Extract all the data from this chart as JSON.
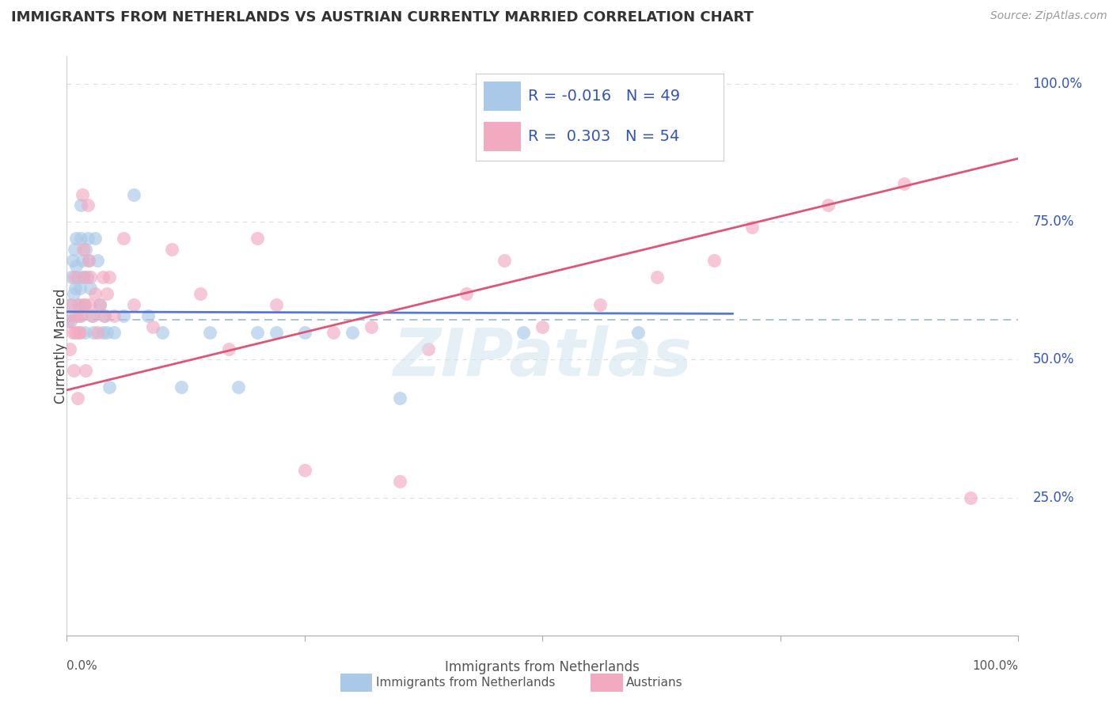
{
  "title": "IMMIGRANTS FROM NETHERLANDS VS AUSTRIAN CURRENTLY MARRIED CORRELATION CHART",
  "source": "Source: ZipAtlas.com",
  "ylabel": "Currently Married",
  "right_ytick_labels": [
    "100.0%",
    "75.0%",
    "50.0%",
    "25.0%"
  ],
  "right_ytick_values": [
    1.0,
    0.75,
    0.5,
    0.25
  ],
  "legend_blue_R": "R = -0.016",
  "legend_blue_N": "N = 49",
  "legend_pink_R": "R =  0.303",
  "legend_pink_N": "N = 54",
  "blue_color": "#aac9e8",
  "pink_color": "#f2aac0",
  "trend_blue_color": "#5577cc",
  "trend_pink_color": "#dd5577",
  "legend_text_color": "#3355bb",
  "dashed_line_color": "#99bbcc",
  "watermark_text": "ZIPatlas",
  "background_color": "#ffffff",
  "grid_color": "#dddddd",
  "blue_scatter_x": [
    0.001,
    0.003,
    0.004,
    0.005,
    0.006,
    0.007,
    0.008,
    0.009,
    0.01,
    0.01,
    0.011,
    0.012,
    0.013,
    0.014,
    0.015,
    0.015,
    0.016,
    0.017,
    0.018,
    0.019,
    0.02,
    0.021,
    0.022,
    0.023,
    0.025,
    0.026,
    0.028,
    0.03,
    0.032,
    0.035,
    0.038,
    0.04,
    0.042,
    0.045,
    0.05,
    0.06,
    0.07,
    0.085,
    0.1,
    0.12,
    0.15,
    0.18,
    0.2,
    0.22,
    0.25,
    0.3,
    0.35,
    0.48,
    0.6
  ],
  "blue_scatter_y": [
    0.58,
    0.6,
    0.57,
    0.65,
    0.68,
    0.62,
    0.7,
    0.63,
    0.72,
    0.67,
    0.65,
    0.6,
    0.58,
    0.63,
    0.78,
    0.72,
    0.68,
    0.65,
    0.6,
    0.55,
    0.7,
    0.65,
    0.72,
    0.68,
    0.63,
    0.58,
    0.55,
    0.72,
    0.68,
    0.6,
    0.55,
    0.58,
    0.55,
    0.45,
    0.55,
    0.58,
    0.8,
    0.58,
    0.55,
    0.45,
    0.55,
    0.45,
    0.55,
    0.55,
    0.55,
    0.55,
    0.43,
    0.55,
    0.55
  ],
  "pink_scatter_x": [
    0.001,
    0.003,
    0.005,
    0.006,
    0.007,
    0.008,
    0.009,
    0.01,
    0.011,
    0.012,
    0.013,
    0.014,
    0.015,
    0.016,
    0.017,
    0.018,
    0.019,
    0.02,
    0.022,
    0.023,
    0.024,
    0.025,
    0.027,
    0.03,
    0.032,
    0.035,
    0.038,
    0.04,
    0.042,
    0.045,
    0.05,
    0.06,
    0.07,
    0.09,
    0.11,
    0.14,
    0.17,
    0.2,
    0.22,
    0.25,
    0.28,
    0.32,
    0.35,
    0.38,
    0.42,
    0.46,
    0.5,
    0.56,
    0.62,
    0.68,
    0.72,
    0.8,
    0.88,
    0.95
  ],
  "pink_scatter_y": [
    0.57,
    0.52,
    0.6,
    0.55,
    0.48,
    0.65,
    0.55,
    0.58,
    0.43,
    0.55,
    0.6,
    0.55,
    0.58,
    0.8,
    0.7,
    0.65,
    0.6,
    0.48,
    0.78,
    0.68,
    0.6,
    0.65,
    0.58,
    0.62,
    0.55,
    0.6,
    0.65,
    0.58,
    0.62,
    0.65,
    0.58,
    0.72,
    0.6,
    0.56,
    0.7,
    0.62,
    0.52,
    0.72,
    0.6,
    0.3,
    0.55,
    0.56,
    0.28,
    0.52,
    0.62,
    0.68,
    0.56,
    0.6,
    0.65,
    0.68,
    0.74,
    0.78,
    0.82,
    0.25
  ],
  "xlim": [
    0,
    1.0
  ],
  "ylim": [
    0,
    1.05
  ],
  "blue_trend_x": [
    0.0,
    0.7
  ],
  "blue_trend_intercept": 0.587,
  "blue_trend_slope": -0.005,
  "pink_trend_x": [
    0.0,
    1.0
  ],
  "pink_trend_intercept": 0.445,
  "pink_trend_slope": 0.42
}
